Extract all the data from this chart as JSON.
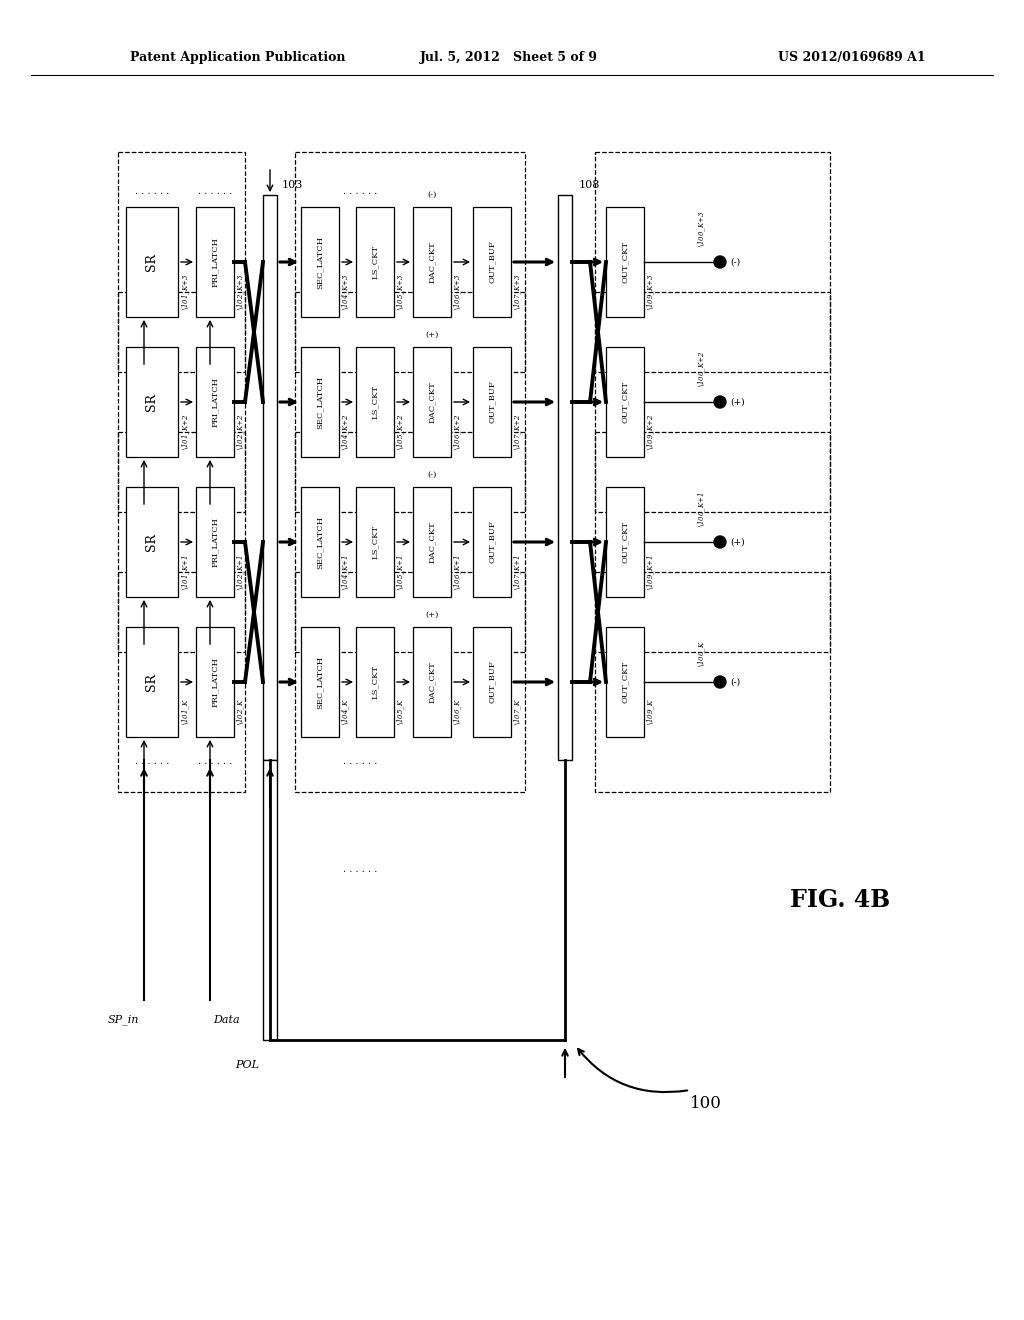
{
  "header_left": "Patent Application Publication",
  "header_mid": "Jul. 5, 2012   Sheet 5 of 9",
  "header_right": "US 2012/0169689 A1",
  "fig_label": "FIG. 4B",
  "bg_color": "#ffffff",
  "rows_top_to_bottom": [
    {
      "suffix": "_K+3",
      "pol_dac": "(-)",
      "pol_out": "(-)"
    },
    {
      "suffix": "_K+2",
      "pol_dac": "(+)",
      "pol_out": "(+)"
    },
    {
      "suffix": "_K+1",
      "pol_dac": "(-)",
      "pol_out": "(+)"
    },
    {
      "suffix": "_K",
      "pol_dac": "(+)",
      "pol_out": "(-)"
    }
  ],
  "bus103_label": "103",
  "bus108_label": "108",
  "diagram_label": "100",
  "signals": [
    "SP_in",
    "Data",
    "POL"
  ],
  "col_labels": [
    "SR",
    "PRI_LATCH",
    "SEC_LATCH",
    "LS_CKT",
    "DAC_CKT",
    "OUT_BUF",
    "OUT_CKT"
  ],
  "num_labels": [
    "101",
    "102",
    "104",
    "105",
    "106",
    "107",
    "109",
    "100"
  ]
}
